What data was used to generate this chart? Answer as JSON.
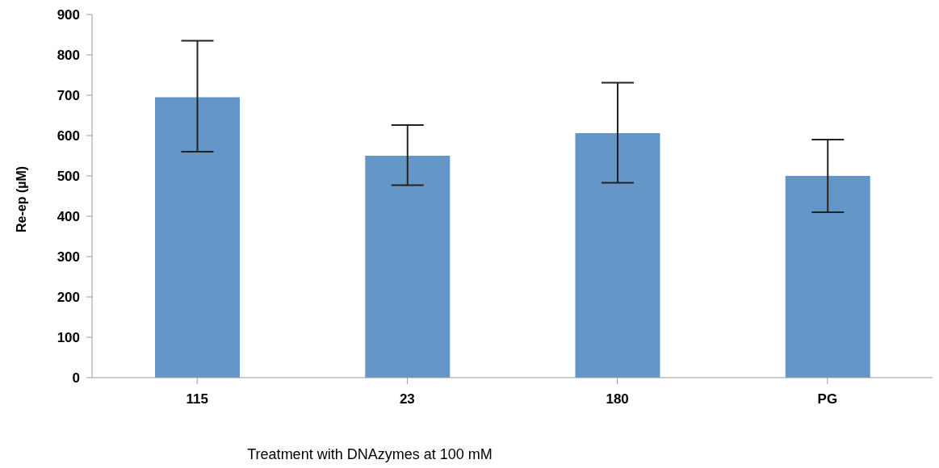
{
  "chart_data": {
    "type": "bar",
    "xlabel": "Treatment with DNAzymes at 100 mM",
    "ylabel": "Re-ep (µM)",
    "categories": [
      "115",
      "23",
      "180",
      "PG"
    ],
    "values": [
      695,
      550,
      606,
      500
    ],
    "errors": [
      [
        560,
        835
      ],
      [
        477,
        626
      ],
      [
        483,
        731
      ],
      [
        410,
        590
      ]
    ],
    "color": "#6497c8",
    "ylim": [
      0,
      900
    ],
    "yticks": [
      0,
      100,
      200,
      300,
      400,
      500,
      600,
      700,
      800,
      900
    ],
    "grid": false,
    "legend": false
  }
}
